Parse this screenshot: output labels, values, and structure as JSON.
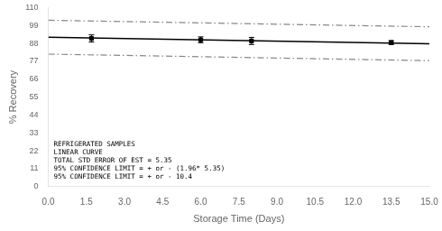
{
  "chart_data": {
    "type": "line",
    "xlabel": "Storage Time (Days)",
    "ylabel": "% Recovery",
    "xlim": [
      0,
      15.0
    ],
    "ylim": [
      0,
      110
    ],
    "xticks": [
      {
        "value": 0,
        "label": "0.0"
      },
      1.5,
      {
        "value": 3,
        "label": "3.0"
      },
      4.5,
      {
        "value": 6,
        "label": "6.0"
      },
      7.5,
      {
        "value": 9,
        "label": "9.0"
      },
      10.5,
      {
        "value": 12,
        "label": "12.0"
      },
      13.5,
      {
        "value": 15,
        "label": "15.0"
      }
    ],
    "yticks": [
      0,
      11,
      22,
      33,
      44,
      55,
      66,
      77,
      88,
      99,
      110
    ],
    "grid": false,
    "series": [
      {
        "type": "line",
        "color": "#888888",
        "line_style": "dashdot",
        "x": [
          0.0,
          15.0
        ],
        "values": [
          102.2,
          98.2
        ]
      },
      {
        "type": "line",
        "color": "#888888",
        "line_style": "dashdot",
        "x": [
          0.0,
          15.0
        ],
        "values": [
          81.4,
          77.4
        ]
      },
      {
        "type": "line",
        "color": "#000000",
        "line_style": "solid",
        "x": [
          0.0,
          15.0
        ],
        "values": [
          91.8,
          87.8
        ]
      },
      {
        "type": "scatter",
        "color": "#000000",
        "marker": "square",
        "x": [
          1.7,
          6.0,
          8.0,
          13.5
        ],
        "values": [
          91.0,
          90.2,
          89.5,
          88.5
        ],
        "errors": [
          2.2,
          1.8,
          2.2,
          1.2
        ]
      }
    ],
    "annotations": [
      "REFRIGERATED SAMPLES",
      "LINEAR CURVE",
      "TOTAL STD ERROR OF EST = 5.35",
      "95% CONFIDENCE LIMIT = + or - (1.96* 5.35)",
      "95% CONFIDENCE LIMIT = + or - 10.4"
    ]
  }
}
